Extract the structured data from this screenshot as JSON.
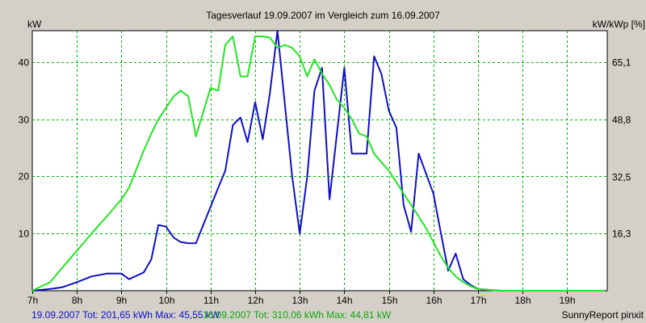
{
  "chart_data": {
    "type": "line",
    "title": "Tagesverlauf 19.09.2007 im Vergleich zum 16.09.2007",
    "ylabel_left": "kW",
    "ylabel_right": "kW/kWp [%]",
    "xlim": [
      7.0,
      19.9
    ],
    "ylim": [
      0,
      45.5
    ],
    "x_ticks": [
      7,
      8,
      9,
      10,
      11,
      12,
      13,
      14,
      15,
      16,
      17,
      18,
      19
    ],
    "x_tick_labels": [
      "7h",
      "8h",
      "9h",
      "10h",
      "11h",
      "12h",
      "13h",
      "14h",
      "15h",
      "16h",
      "17h",
      "18h",
      "19h"
    ],
    "y_left_ticks": [
      10,
      20,
      30,
      40
    ],
    "y_left_tick_labels": [
      "10",
      "20",
      "30",
      "40"
    ],
    "y_right_ticks": [
      16.3,
      32.5,
      48.8,
      65.1
    ],
    "y_right_tick_labels": [
      "16,3",
      "32,5",
      "48,8",
      "65,1"
    ],
    "y_right_factor": 1.627,
    "grid": true,
    "series": [
      {
        "name": "19.09.2007",
        "color": "#1010c8",
        "summary": "19.09.2007 Tot: 201,65 kWh Max: 45,55 kW",
        "x": [
          7.0,
          7.4,
          7.67,
          8.0,
          8.33,
          8.67,
          9.0,
          9.17,
          9.5,
          9.67,
          9.83,
          10.0,
          10.17,
          10.33,
          10.5,
          10.67,
          11.17,
          11.33,
          11.5,
          11.67,
          11.83,
          12.0,
          12.17,
          12.33,
          12.5,
          12.83,
          13.0,
          13.17,
          13.33,
          13.5,
          13.67,
          14.0,
          14.17,
          14.5,
          14.67,
          14.83,
          15.0,
          15.17,
          15.33,
          15.5,
          15.67,
          16.0,
          16.17,
          16.33,
          16.5,
          16.67,
          16.83,
          17.0,
          17.5,
          17.83,
          18.17,
          18.5,
          18.83,
          19.17,
          19.5,
          19.83
        ],
        "y": [
          0,
          0.3,
          0.6,
          1.5,
          2.5,
          3.0,
          3.0,
          2.0,
          3.2,
          5.5,
          11.5,
          11.2,
          9.3,
          8.5,
          8.3,
          8.3,
          18.0,
          21.0,
          29.0,
          30.3,
          26.0,
          33.0,
          26.5,
          34.5,
          45.5,
          20.0,
          10.0,
          20.0,
          35.0,
          39.0,
          16.0,
          39.0,
          24.0,
          24.0,
          41.0,
          38.0,
          31.5,
          28.5,
          15.0,
          10.3,
          24.0,
          17.0,
          10.0,
          3.5,
          6.5,
          2.0,
          1.0,
          0.3,
          0,
          0,
          0,
          0,
          0,
          0,
          0,
          0
        ]
      },
      {
        "name": "16.09.2007",
        "color": "#22e622",
        "summary": "16.09.2007 Tot: 310,06 kWh Max: 44,81 kW",
        "x": [
          7.0,
          7.4,
          7.67,
          8.0,
          8.33,
          8.67,
          9.0,
          9.17,
          9.5,
          9.67,
          9.83,
          10.0,
          10.17,
          10.33,
          10.5,
          10.67,
          11.0,
          11.17,
          11.33,
          11.5,
          11.67,
          11.83,
          12.0,
          12.17,
          12.33,
          12.5,
          12.67,
          12.83,
          13.0,
          13.17,
          13.33,
          13.5,
          13.67,
          13.83,
          14.0,
          14.17,
          14.33,
          14.5,
          14.67,
          14.83,
          15.0,
          15.17,
          15.33,
          15.5,
          15.67,
          15.83,
          16.0,
          16.17,
          16.33,
          16.5,
          16.67,
          16.83,
          17.0,
          17.17,
          17.33,
          17.5,
          17.67,
          17.83,
          18.0,
          18.17,
          18.33,
          18.5,
          18.67,
          18.83,
          19.0,
          19.17,
          19.33,
          19.5,
          19.67,
          19.83
        ],
        "y": [
          0,
          1.5,
          4.0,
          7.0,
          10.0,
          13.0,
          16.0,
          18.0,
          24.5,
          27.5,
          30.0,
          32.0,
          34.0,
          35.0,
          34.0,
          27.0,
          35.5,
          35.0,
          43.0,
          44.5,
          37.5,
          37.5,
          44.5,
          44.5,
          44.3,
          42.5,
          43.0,
          42.5,
          41.0,
          37.5,
          40.5,
          38.0,
          36.0,
          33.5,
          32.0,
          30.0,
          27.5,
          27.0,
          24.0,
          22.5,
          21.0,
          19.0,
          17.0,
          15.0,
          13.0,
          11.0,
          8.5,
          6.0,
          4.0,
          2.5,
          1.5,
          0.8,
          0.3,
          0.2,
          0.1,
          0,
          0,
          0,
          0,
          0,
          0,
          0,
          0,
          0,
          0,
          0,
          0,
          0,
          0,
          0
        ]
      }
    ],
    "footer_right": "SunnyReport pinxit"
  }
}
